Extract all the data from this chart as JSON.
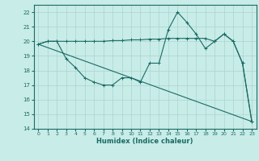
{
  "xlabel": "Humidex (Indice chaleur)",
  "bg_color": "#c8ece8",
  "grid_color": "#aad4cf",
  "line_color": "#1a6b63",
  "xlim": [
    -0.5,
    23.5
  ],
  "ylim": [
    14,
    22.5
  ],
  "yticks": [
    14,
    15,
    16,
    17,
    18,
    19,
    20,
    21,
    22
  ],
  "xticks": [
    0,
    1,
    2,
    3,
    4,
    5,
    6,
    7,
    8,
    9,
    10,
    11,
    12,
    13,
    14,
    15,
    16,
    17,
    18,
    19,
    20,
    21,
    22,
    23
  ],
  "line1_x": [
    0,
    1,
    2,
    3,
    4,
    5,
    6,
    7,
    8,
    9,
    10,
    11,
    12,
    13,
    14,
    15,
    16,
    17,
    18,
    19,
    20,
    21,
    22,
    23
  ],
  "line1_y": [
    19.8,
    20.0,
    20.0,
    20.0,
    20.0,
    20.0,
    20.0,
    20.0,
    20.05,
    20.05,
    20.1,
    20.1,
    20.15,
    20.15,
    20.2,
    20.2,
    20.2,
    20.2,
    20.2,
    20.0,
    20.5,
    20.0,
    18.5,
    14.5
  ],
  "line2_x": [
    0,
    1,
    2,
    3,
    4,
    5,
    6,
    7,
    8,
    9,
    10,
    11,
    12,
    13,
    14,
    15,
    16,
    17,
    18,
    19,
    20,
    21,
    22,
    23
  ],
  "line2_y": [
    19.8,
    20.0,
    20.0,
    18.8,
    18.2,
    17.5,
    17.2,
    17.0,
    17.0,
    17.5,
    17.5,
    17.2,
    18.5,
    18.5,
    20.8,
    22.0,
    21.3,
    20.5,
    19.5,
    20.0,
    20.5,
    20.0,
    18.5,
    14.5
  ],
  "line3_x": [
    0,
    23
  ],
  "line3_y": [
    19.8,
    14.5
  ]
}
